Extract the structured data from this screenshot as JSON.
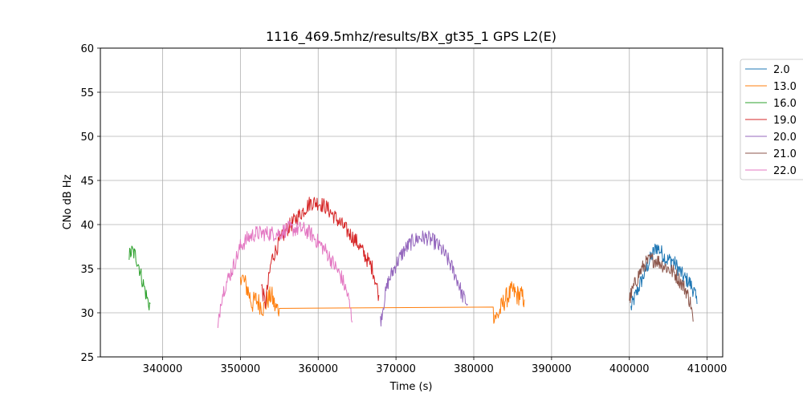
{
  "chart_data": {
    "type": "line",
    "title": "1116_469.5mhz/results/BX_gt35_1 GPS L2(E)",
    "xlabel": "Time (s)",
    "ylabel": "CNo dB Hz",
    "xlim": [
      332000,
      412000
    ],
    "ylim": [
      25,
      60
    ],
    "xticks": [
      340000,
      350000,
      360000,
      370000,
      380000,
      390000,
      400000,
      410000
    ],
    "yticks": [
      25,
      30,
      35,
      40,
      45,
      50,
      55,
      60
    ],
    "grid": true,
    "legend_position": "outside-right",
    "series": [
      {
        "name": "2.0",
        "color": "#1f77b4",
        "x": [
          400200,
          400800,
          401500,
          402200,
          402900,
          403500,
          404000,
          404800,
          405500,
          406300,
          407000,
          407700,
          408300,
          408700
        ],
        "y": [
          30.5,
          32.0,
          33.5,
          35.0,
          36.5,
          37.5,
          37.0,
          36.0,
          36.0,
          35.0,
          34.0,
          33.5,
          32.5,
          31.0
        ]
      },
      {
        "name": "13.0",
        "color": "#ff7f0e",
        "x": [
          350000,
          350500,
          351000,
          351500,
          352000,
          352500,
          353000,
          353500,
          354000,
          354500,
          355000,
          382500,
          383000,
          383500,
          384000,
          384500,
          385000,
          385500,
          386000,
          386500
        ],
        "y": [
          34.5,
          33.5,
          32.5,
          31.0,
          31.5,
          31.0,
          30.5,
          31.5,
          32.0,
          30.5,
          30.5,
          30.0,
          29.5,
          30.5,
          31.5,
          32.0,
          32.5,
          32.0,
          32.0,
          31.5
        ],
        "noise": 1.2
      },
      {
        "name": "16.0",
        "color": "#2ca02c",
        "x": [
          335700,
          336100,
          336500,
          336900,
          337300,
          337600,
          337900,
          338200,
          338400
        ],
        "y": [
          36.5,
          37.0,
          36.5,
          35.5,
          34.0,
          33.0,
          32.0,
          31.0,
          31.0
        ]
      },
      {
        "name": "19.0",
        "color": "#d62728",
        "x": [
          352700,
          353200,
          354000,
          355000,
          356000,
          357000,
          358000,
          359000,
          360000,
          361000,
          362000,
          363000,
          364000,
          365000,
          366000,
          367000,
          367800
        ],
        "y": [
          33.0,
          31.0,
          36.0,
          38.0,
          39.5,
          40.5,
          41.5,
          42.5,
          42.5,
          42.0,
          41.0,
          40.0,
          39.0,
          38.0,
          36.5,
          35.0,
          32.0
        ]
      },
      {
        "name": "20.0",
        "color": "#9467bd",
        "x": [
          368000,
          368500,
          369000,
          370000,
          371000,
          372000,
          373000,
          374000,
          375000,
          376000,
          377000,
          378000,
          378500,
          379200
        ],
        "y": [
          29.0,
          31.5,
          33.5,
          35.5,
          37.0,
          38.0,
          38.5,
          38.5,
          38.0,
          37.0,
          35.5,
          33.5,
          32.0,
          31.0
        ]
      },
      {
        "name": "21.0",
        "color": "#8c564b",
        "x": [
          400000,
          400600,
          401300,
          402000,
          402700,
          403500,
          404200,
          405000,
          405800,
          406600,
          407300,
          407900,
          408200
        ],
        "y": [
          31.5,
          33.0,
          34.5,
          35.5,
          36.0,
          36.0,
          35.5,
          35.0,
          34.5,
          33.5,
          32.5,
          31.0,
          29.0
        ]
      },
      {
        "name": "22.0",
        "color": "#e377c2",
        "x": [
          347100,
          347500,
          348000,
          349000,
          350000,
          351000,
          352000,
          353000,
          354000,
          355000,
          356000,
          357000,
          358000,
          359000,
          360000,
          361000,
          362000,
          363000,
          363800,
          364400
        ],
        "y": [
          28.0,
          31.5,
          33.0,
          35.0,
          37.5,
          38.5,
          39.0,
          39.0,
          39.0,
          39.0,
          39.5,
          39.5,
          39.5,
          39.0,
          38.0,
          37.0,
          35.5,
          34.0,
          32.0,
          29.0
        ]
      }
    ]
  }
}
